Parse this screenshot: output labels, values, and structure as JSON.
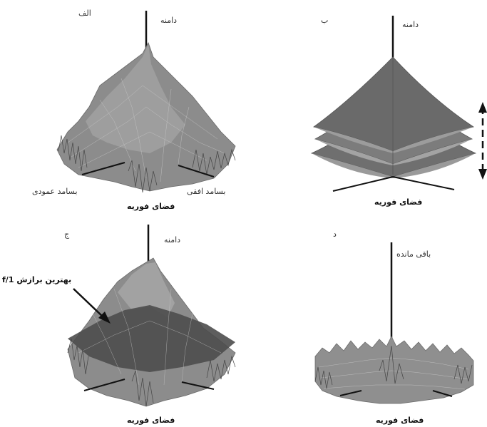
{
  "panels": {
    "a": {
      "letter": "الف",
      "axis_vertical": "دامنه",
      "axis_left": "بسامد عمودی",
      "axis_right": "بسامد افقی",
      "caption": "فضای فوریه"
    },
    "b": {
      "letter": "ب",
      "axis_vertical": "دامنه",
      "caption": "فضای فوریه"
    },
    "c": {
      "letter": "ج",
      "axis_vertical": "دامنه",
      "annotation": "بهترین برازش 1/f",
      "caption": "فضای فوریه"
    },
    "d": {
      "letter": "د",
      "axis_vertical": "باقی مانده",
      "caption": "فضای فوریه"
    }
  },
  "colors": {
    "surface": "#8c8c8c",
    "surface_dark": "#5e5e5e",
    "mesh": "#bdbdbd",
    "axis": "#111111",
    "fit_plane": "#4a4a4a"
  }
}
